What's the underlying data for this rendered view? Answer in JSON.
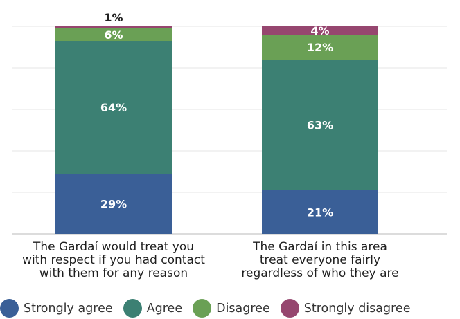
{
  "chart_data": {
    "type": "bar",
    "stacked": true,
    "categories": [
      "The Gardaí would treat you\nwith respect if you had contact\nwith them for any reason",
      "The Gardaí in this area\ntreat everyone fairly\nregardless of who they are"
    ],
    "series": [
      {
        "name": "Strongly agree",
        "color": "#3a5f97",
        "values": [
          29,
          21
        ],
        "labels": [
          "29%",
          "21%"
        ]
      },
      {
        "name": "Agree",
        "color": "#3c8073",
        "values": [
          64,
          63
        ],
        "labels": [
          "64%",
          "63%"
        ]
      },
      {
        "name": "Disagree",
        "color": "#6aa055",
        "values": [
          6,
          12
        ],
        "labels": [
          "6%",
          "12%"
        ]
      },
      {
        "name": "Strongly disagree",
        "color": "#96466f",
        "values": [
          1,
          4
        ],
        "labels": [
          "1%",
          "4%"
        ]
      }
    ],
    "ylim": [
      0,
      100
    ],
    "grid": true,
    "legend": "bottom"
  }
}
